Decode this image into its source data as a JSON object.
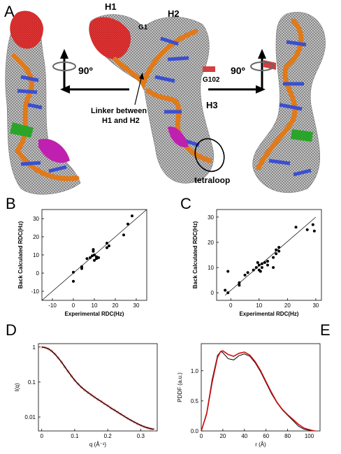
{
  "panels": {
    "A": {
      "label": "A",
      "annotations": {
        "h1": "H1",
        "h2": "H2",
        "h3": "H3",
        "g1": "G1",
        "g102": "G102",
        "rot_left": "90º",
        "rot_right": "90º",
        "linker": "Linker between",
        "linker2": "H1 and H2",
        "tetraloop": "tetraloop"
      },
      "colors": {
        "helix": "#e07a1a",
        "h1": "#d81e1e",
        "mesh": "#8c8c8c",
        "bases": "#3b4fd0",
        "green": "#2aa52a",
        "magenta": "#c020b0"
      }
    },
    "B": {
      "label": "B"
    },
    "C": {
      "label": "C"
    },
    "D": {
      "label": "D"
    },
    "E": {
      "label": "E"
    }
  },
  "chart_data": [
    {
      "id": "B",
      "type": "scatter",
      "xlabel": "Experimental RDC(Hz)",
      "ylabel": "Back Calculated RDC(Hz)",
      "xlim": [
        -15,
        35
      ],
      "ylim": [
        -15,
        35
      ],
      "xticks": [
        -10,
        0,
        10,
        20,
        30
      ],
      "yticks": [
        -10,
        0,
        10,
        20,
        30
      ],
      "fit_line": [
        [
          -15,
          -15
        ],
        [
          35,
          35
        ]
      ],
      "points": [
        [
          0,
          -4.5
        ],
        [
          0,
          0.5
        ],
        [
          4,
          2.5
        ],
        [
          4,
          3.5
        ],
        [
          6.5,
          8
        ],
        [
          8,
          8.5
        ],
        [
          9,
          9.5
        ],
        [
          9.5,
          12
        ],
        [
          9.5,
          13
        ],
        [
          10,
          10
        ],
        [
          10,
          7
        ],
        [
          11,
          8
        ],
        [
          11,
          9
        ],
        [
          12,
          8.5
        ],
        [
          16,
          14
        ],
        [
          16,
          16.5
        ],
        [
          17,
          15
        ],
        [
          24,
          21
        ],
        [
          26,
          27
        ],
        [
          28,
          31.5
        ]
      ]
    },
    {
      "id": "C",
      "type": "scatter",
      "xlabel": "Experimental RDC(Hz)",
      "ylabel": "Back Calculated RDC(Hz)",
      "xlim": [
        -5,
        32
      ],
      "ylim": [
        -3,
        33
      ],
      "xticks": [
        0,
        10,
        20,
        30
      ],
      "yticks": [
        0,
        10,
        20,
        30
      ],
      "fit_line": [
        [
          -2,
          -1
        ],
        [
          30,
          30
        ]
      ],
      "points": [
        [
          -2,
          1
        ],
        [
          -1,
          8.5
        ],
        [
          -1,
          0
        ],
        [
          3,
          3
        ],
        [
          3,
          4
        ],
        [
          5,
          7
        ],
        [
          6,
          8
        ],
        [
          8,
          9
        ],
        [
          9,
          10
        ],
        [
          9.5,
          12
        ],
        [
          10,
          9
        ],
        [
          10,
          11
        ],
        [
          10.5,
          8.5
        ],
        [
          11,
          11.5
        ],
        [
          11,
          10
        ],
        [
          12,
          12
        ],
        [
          13,
          12.5
        ],
        [
          13,
          11
        ],
        [
          15,
          10
        ],
        [
          15,
          14
        ],
        [
          16,
          15.5
        ],
        [
          16,
          17
        ],
        [
          17,
          16.5
        ],
        [
          17,
          18
        ],
        [
          23,
          26
        ],
        [
          27,
          25
        ],
        [
          29,
          27
        ],
        [
          29.5,
          24.5
        ]
      ]
    },
    {
      "id": "D",
      "type": "line",
      "xlabel": "q (Å⁻¹)",
      "ylabel": "I(q)",
      "xlim": [
        -0.01,
        0.35
      ],
      "ylim": [
        0.004,
        1.25
      ],
      "yscale": "log",
      "xticks": [
        0.0,
        0.1,
        0.2,
        0.3
      ],
      "yticks": [
        1,
        0.1,
        0.01
      ],
      "ytick_labels": [
        "1",
        "0.1",
        "0.01"
      ],
      "series": [
        {
          "kind": "markers",
          "color": "#e8b0b0",
          "x": [
            0,
            0.01,
            0.02,
            0.03,
            0.04,
            0.05,
            0.06,
            0.07,
            0.08,
            0.09,
            0.1,
            0.11,
            0.12,
            0.13,
            0.14,
            0.15,
            0.16,
            0.17,
            0.18,
            0.19,
            0.2,
            0.21,
            0.22,
            0.23,
            0.24,
            0.25,
            0.26,
            0.27,
            0.28,
            0.29,
            0.3,
            0.31,
            0.32,
            0.33,
            0.34
          ],
          "y": [
            1,
            0.97,
            0.89,
            0.77,
            0.63,
            0.49,
            0.37,
            0.27,
            0.2,
            0.148,
            0.112,
            0.088,
            0.071,
            0.059,
            0.05,
            0.043,
            0.037,
            0.032,
            0.028,
            0.024,
            0.021,
            0.018,
            0.0158,
            0.0138,
            0.012,
            0.0105,
            0.0092,
            0.0081,
            0.0072,
            0.0064,
            0.0058,
            0.0053,
            0.0049,
            0.0046,
            0.0044
          ]
        },
        {
          "kind": "line",
          "color": "#d01010",
          "x": [
            0,
            0.01,
            0.02,
            0.03,
            0.04,
            0.05,
            0.06,
            0.07,
            0.08,
            0.09,
            0.1,
            0.11,
            0.12,
            0.13,
            0.14,
            0.15,
            0.16,
            0.17,
            0.18,
            0.19,
            0.2,
            0.21,
            0.22,
            0.23,
            0.24,
            0.25,
            0.26,
            0.27,
            0.28,
            0.29,
            0.3,
            0.31,
            0.32,
            0.33,
            0.34
          ],
          "y": [
            1,
            0.97,
            0.89,
            0.77,
            0.63,
            0.49,
            0.37,
            0.27,
            0.2,
            0.148,
            0.112,
            0.088,
            0.071,
            0.059,
            0.05,
            0.043,
            0.037,
            0.032,
            0.028,
            0.024,
            0.021,
            0.018,
            0.0158,
            0.0138,
            0.012,
            0.0105,
            0.0092,
            0.0081,
            0.0072,
            0.0064,
            0.0058,
            0.0053,
            0.0049,
            0.0046,
            0.0044
          ]
        },
        {
          "kind": "line",
          "color": "#000000",
          "x": [
            0,
            0.01,
            0.02,
            0.03,
            0.04,
            0.05,
            0.06,
            0.07,
            0.08,
            0.09,
            0.1,
            0.11,
            0.12,
            0.13,
            0.14,
            0.15,
            0.16,
            0.17,
            0.18,
            0.19,
            0.2,
            0.21,
            0.22,
            0.23,
            0.24,
            0.25,
            0.26,
            0.27,
            0.28,
            0.29,
            0.3,
            0.31,
            0.32,
            0.33,
            0.34
          ],
          "y": [
            1,
            0.965,
            0.885,
            0.765,
            0.625,
            0.485,
            0.368,
            0.272,
            0.201,
            0.15,
            0.113,
            0.089,
            0.072,
            0.06,
            0.051,
            0.043,
            0.037,
            0.032,
            0.028,
            0.024,
            0.021,
            0.018,
            0.0158,
            0.0138,
            0.012,
            0.0105,
            0.0092,
            0.0081,
            0.0072,
            0.0065,
            0.0058,
            0.0053,
            0.005,
            0.0047,
            0.0045
          ]
        }
      ]
    },
    {
      "id": "E",
      "type": "line",
      "xlabel": "r (Å)",
      "ylabel": "PDDF (a.u.)",
      "xlim": [
        0,
        110
      ],
      "ylim": [
        0,
        1.45
      ],
      "xticks": [
        0,
        20,
        40,
        60,
        80,
        100
      ],
      "yticks": [
        0,
        0.5,
        1
      ],
      "ytick_labels": [
        "0.0",
        "0.5",
        "1.0"
      ],
      "series": [
        {
          "kind": "line",
          "color": "#000000",
          "x": [
            0,
            5,
            10,
            15,
            18,
            20,
            25,
            30,
            35,
            40,
            45,
            50,
            55,
            60,
            65,
            70,
            75,
            80,
            85,
            90,
            95,
            100,
            105
          ],
          "y": [
            0,
            0.3,
            0.85,
            1.25,
            1.32,
            1.3,
            1.2,
            1.18,
            1.25,
            1.28,
            1.24,
            1.13,
            0.98,
            0.8,
            0.62,
            0.47,
            0.35,
            0.26,
            0.17,
            0.08,
            0.03,
            0.01,
            0
          ]
        },
        {
          "kind": "line",
          "color": "#d01010",
          "x": [
            0,
            5,
            10,
            15,
            18,
            20,
            25,
            30,
            35,
            40,
            45,
            50,
            55,
            60,
            65,
            70,
            75,
            80,
            85,
            90,
            95,
            100,
            105
          ],
          "y": [
            0,
            0.28,
            0.8,
            1.22,
            1.32,
            1.33,
            1.27,
            1.24,
            1.29,
            1.31,
            1.26,
            1.15,
            1.0,
            0.82,
            0.64,
            0.48,
            0.36,
            0.27,
            0.19,
            0.11,
            0.05,
            0.02,
            0
          ]
        }
      ]
    }
  ]
}
